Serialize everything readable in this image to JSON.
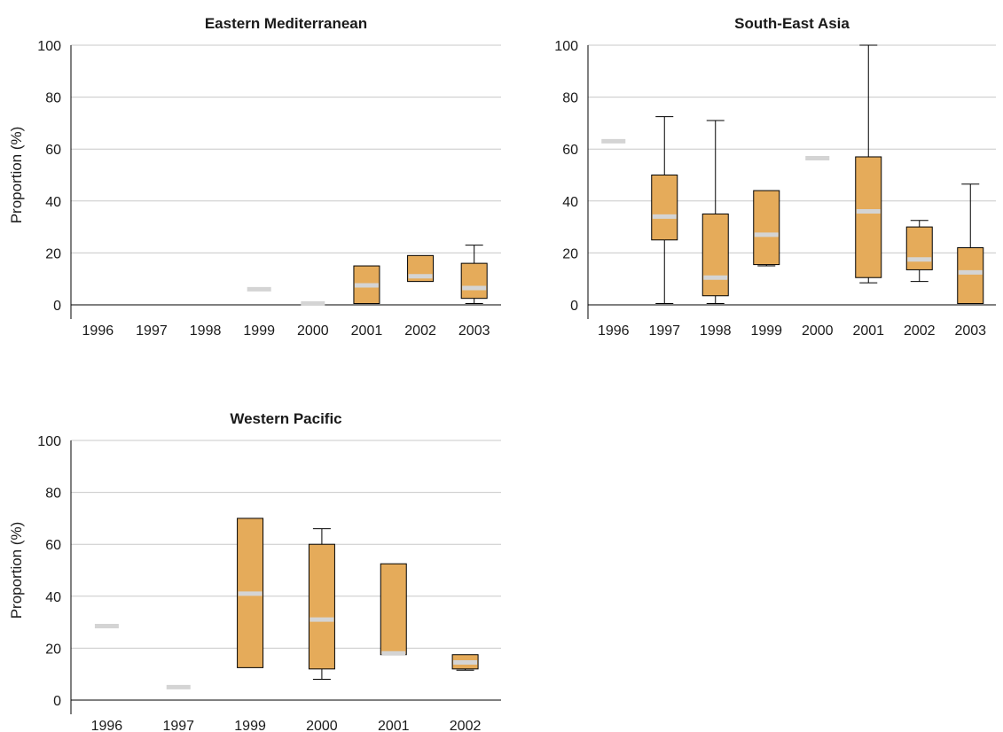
{
  "colors": {
    "box_fill": "#e5ab5a",
    "median": "#d4d4d4",
    "grid": "#c8c8c8",
    "axis": "#000000"
  },
  "chart_data": [
    {
      "type": "box",
      "title": "Eastern Mediterranean",
      "ylabel": "Proportion (%)",
      "xlabel": "",
      "ylim": [
        0,
        100
      ],
      "yticks": [
        0,
        20,
        40,
        60,
        80,
        100
      ],
      "categories": [
        "1996",
        "1997",
        "1998",
        "1999",
        "2000",
        "2001",
        "2002",
        "2003"
      ],
      "boxes": [
        null,
        null,
        null,
        {
          "median": 6
        },
        {
          "median": 0.5
        },
        {
          "min": 0.5,
          "q1": 0.5,
          "median": 7.5,
          "q3": 15,
          "max": 15
        },
        {
          "min": 9,
          "q1": 9,
          "median": 11,
          "q3": 19,
          "max": 19
        },
        {
          "min": 0.5,
          "q1": 2.5,
          "median": 6.5,
          "q3": 16,
          "max": 23
        }
      ]
    },
    {
      "type": "box",
      "title": "South-East Asia",
      "ylabel": "",
      "xlabel": "",
      "ylim": [
        0,
        100
      ],
      "yticks": [
        0,
        20,
        40,
        60,
        80,
        100
      ],
      "categories": [
        "1996",
        "1997",
        "1998",
        "1999",
        "2000",
        "2001",
        "2002",
        "2003"
      ],
      "boxes": [
        {
          "median": 63
        },
        {
          "min": 0.5,
          "q1": 25,
          "median": 34,
          "q3": 50,
          "max": 72.5
        },
        {
          "min": 0.5,
          "q1": 3.5,
          "median": 10.5,
          "q3": 35,
          "max": 71
        },
        {
          "min": 15,
          "q1": 15.5,
          "median": 27,
          "q3": 44,
          "max": 44
        },
        {
          "median": 56.5
        },
        {
          "min": 8.5,
          "q1": 10.5,
          "median": 36,
          "q3": 57,
          "max": 100
        },
        {
          "min": 9,
          "q1": 13.5,
          "median": 17.5,
          "q3": 30,
          "max": 32.5
        },
        {
          "min": 0.5,
          "q1": 0.5,
          "median": 12.5,
          "q3": 22,
          "max": 46.5
        }
      ]
    },
    {
      "type": "box",
      "title": "Western Pacific",
      "ylabel": "Proportion (%)",
      "xlabel": "",
      "ylim": [
        0,
        100
      ],
      "yticks": [
        0,
        20,
        40,
        60,
        80,
        100
      ],
      "categories": [
        "1996",
        "1997",
        "1999",
        "2000",
        "2001",
        "2002"
      ],
      "boxes": [
        {
          "median": 28.5
        },
        {
          "median": 5
        },
        {
          "min": 12.5,
          "q1": 12.5,
          "median": 41,
          "q3": 70,
          "max": 70
        },
        {
          "min": 8,
          "q1": 12,
          "median": 31,
          "q3": 60,
          "max": 66
        },
        {
          "min": 17.5,
          "q1": 17.5,
          "median": 18,
          "q3": 52.5,
          "max": 52.5
        },
        {
          "min": 11.5,
          "q1": 12,
          "median": 14.5,
          "q3": 17.5,
          "max": 17.5
        }
      ]
    }
  ]
}
